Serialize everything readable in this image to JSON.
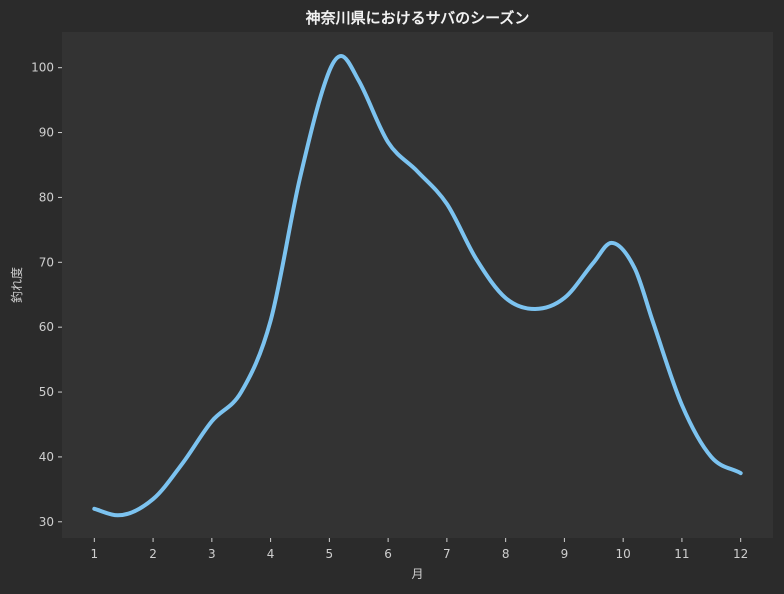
{
  "chart_data": {
    "type": "line",
    "title": "神奈川県におけるサバのシーズン",
    "xlabel": "月",
    "ylabel": "釣れ度",
    "x": [
      1,
      2,
      3,
      4,
      5,
      6,
      7,
      8,
      9,
      10,
      11,
      12
    ],
    "xticks": [
      "1",
      "2",
      "3",
      "4",
      "5",
      "6",
      "7",
      "8",
      "9",
      "10",
      "11",
      "12"
    ],
    "yticks": [
      30,
      40,
      50,
      60,
      70,
      80,
      90,
      100
    ],
    "xlim": [
      0.45,
      12.55
    ],
    "ylim": [
      27.5,
      105.5
    ],
    "grid": false,
    "series": [
      {
        "x": [
          1,
          1.4,
          2,
          2.5,
          3,
          3.5,
          4,
          4.5,
          5,
          5.2,
          5.5,
          6,
          6.5,
          7,
          7.5,
          8,
          8.5,
          9,
          9.5,
          9.8,
          10.2,
          10.5,
          11,
          11.5,
          12
        ],
        "values": [
          32,
          31,
          33.5,
          39,
          45.5,
          50,
          61,
          83,
          99.5,
          101.8,
          98,
          88.5,
          84,
          79,
          70.5,
          64.5,
          62.8,
          64.5,
          70,
          73,
          69,
          61,
          48,
          40,
          37.5
        ],
        "color": "#7cc3f0"
      }
    ],
    "colors": {
      "figure_background": "#2b2b2b",
      "axes_background": "#333333",
      "text": "#cfcfcf",
      "line": "#7cc3f0"
    }
  }
}
